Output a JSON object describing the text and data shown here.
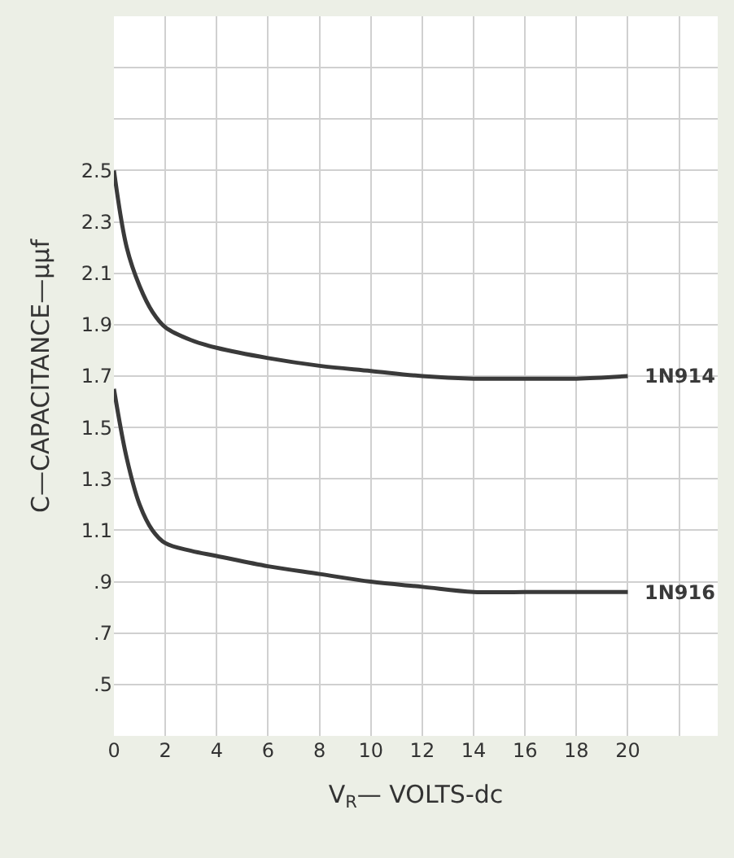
{
  "chart_data": {
    "type": "line",
    "xlabel": "V$_{R}$— VOLTS-dc",
    "ylabel": "C—CAPACITANCE—μμf",
    "xlim": [
      0,
      23.5
    ],
    "ylim": [
      0.3,
      3.1
    ],
    "xticks": [
      0,
      2,
      4,
      6,
      8,
      10,
      12,
      14,
      16,
      18,
      20,
      {
        "value": 22,
        "label": null
      }
    ],
    "yticks": [
      {
        "value": 0.5,
        "label": ".5"
      },
      {
        "value": 0.7,
        "label": ".7"
      },
      {
        "value": 0.9,
        "label": ".9"
      },
      1.1,
      1.3,
      1.5,
      1.7,
      1.9,
      2.1,
      2.3,
      2.5,
      {
        "value": 2.7,
        "label": null
      },
      {
        "value": 2.9,
        "label": null
      }
    ],
    "grid": true,
    "legend": false,
    "marker": "none",
    "line_style": "solid",
    "x": [
      0,
      0.5,
      1,
      1.5,
      2,
      3,
      4,
      6,
      8,
      10,
      12,
      14,
      16,
      18,
      20
    ],
    "series": [
      {
        "name": "1N914",
        "color": "#3a3a3a",
        "values": [
          2.5,
          2.2,
          2.05,
          1.95,
          1.89,
          1.84,
          1.81,
          1.77,
          1.74,
          1.72,
          1.7,
          1.69,
          1.69,
          1.69,
          1.7
        ]
      },
      {
        "name": "1N916",
        "color": "#3a3a3a",
        "values": [
          1.65,
          1.38,
          1.2,
          1.1,
          1.05,
          1.02,
          1.0,
          0.96,
          0.93,
          0.9,
          0.88,
          0.86,
          0.86,
          0.86,
          0.86
        ]
      }
    ]
  }
}
